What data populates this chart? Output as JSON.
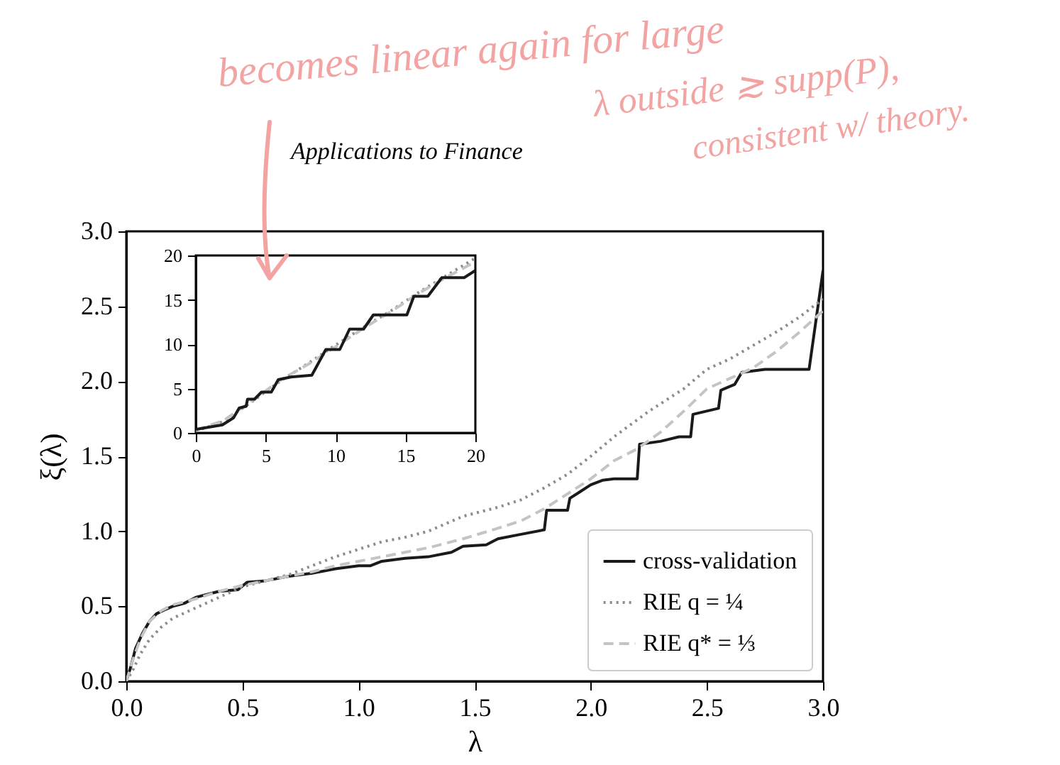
{
  "chart_data": [
    {
      "type": "line",
      "title": "Applications to Finance",
      "xlabel": "λ",
      "ylabel": "ξ(λ)",
      "annotations": [
        "becomes linear again for large",
        "λ outside ≳ supp(P),",
        "consistent w/ theory."
      ],
      "xlim": [
        0,
        3
      ],
      "ylim": [
        0,
        3
      ],
      "xticks": [
        {
          "value": 0,
          "label": "0.0"
        },
        {
          "value": 0.5,
          "label": "0.5"
        },
        {
          "value": 1,
          "label": "1.0"
        },
        {
          "value": 1.5,
          "label": "1.5"
        },
        {
          "value": 2,
          "label": "2.0"
        },
        {
          "value": 2.5,
          "label": "2.5"
        },
        {
          "value": 3,
          "label": "3.0"
        }
      ],
      "yticks": [
        {
          "value": 0,
          "label": "0.0"
        },
        {
          "value": 0.5,
          "label": "0.5"
        },
        {
          "value": 1,
          "label": "1.0"
        },
        {
          "value": 1.5,
          "label": "1.5"
        },
        {
          "value": 2,
          "label": "2.0"
        },
        {
          "value": 2.5,
          "label": "2.5"
        },
        {
          "value": 3,
          "label": "3.0"
        }
      ],
      "legend": "bottom right",
      "series": [
        {
          "name": "cross-validation",
          "color": "#1a1a1a",
          "line_style": "solid",
          "x": [
            0,
            0.02,
            0.04,
            0.07,
            0.1,
            0.13,
            0.17,
            0.2,
            0.25,
            0.3,
            0.4,
            0.48,
            0.52,
            0.6,
            0.7,
            0.8,
            0.9,
            1.0,
            1.05,
            1.1,
            1.2,
            1.3,
            1.4,
            1.45,
            1.55,
            1.6,
            1.7,
            1.8,
            1.81,
            1.9,
            1.91,
            1.95,
            2.0,
            2.05,
            2.1,
            2.2,
            2.21,
            2.3,
            2.38,
            2.43,
            2.44,
            2.55,
            2.56,
            2.62,
            2.65,
            2.75,
            2.94,
            3.0
          ],
          "values": [
            0,
            0.1,
            0.22,
            0.32,
            0.4,
            0.45,
            0.48,
            0.5,
            0.52,
            0.56,
            0.6,
            0.61,
            0.66,
            0.67,
            0.7,
            0.72,
            0.75,
            0.77,
            0.77,
            0.8,
            0.82,
            0.83,
            0.86,
            0.9,
            0.91,
            0.95,
            0.98,
            1.01,
            1.14,
            1.14,
            1.22,
            1.26,
            1.31,
            1.34,
            1.35,
            1.35,
            1.58,
            1.6,
            1.63,
            1.63,
            1.78,
            1.82,
            1.94,
            1.98,
            2.06,
            2.08,
            2.08,
            2.74
          ]
        },
        {
          "name": "RIE q = ¼",
          "color": "#8c8c8c",
          "line_style": "dotted",
          "x": [
            0,
            0.03,
            0.06,
            0.1,
            0.15,
            0.2,
            0.3,
            0.4,
            0.5,
            0.6,
            0.7,
            0.8,
            0.9,
            1.0,
            1.1,
            1.2,
            1.3,
            1.45,
            1.6,
            1.7,
            1.8,
            1.9,
            2.0,
            2.1,
            2.25,
            2.4,
            2.5,
            2.6,
            2.7,
            2.8,
            2.9,
            3.0
          ],
          "values": [
            0,
            0.08,
            0.18,
            0.28,
            0.36,
            0.42,
            0.49,
            0.56,
            0.63,
            0.67,
            0.71,
            0.77,
            0.83,
            0.88,
            0.93,
            0.96,
            1.0,
            1.1,
            1.16,
            1.21,
            1.29,
            1.38,
            1.5,
            1.63,
            1.8,
            1.95,
            2.08,
            2.15,
            2.24,
            2.33,
            2.43,
            2.55
          ]
        },
        {
          "name": "RIE q* = ⅓",
          "color": "#c4c4c4",
          "line_style": "dashed",
          "x": [
            0,
            0.03,
            0.06,
            0.1,
            0.15,
            0.2,
            0.3,
            0.4,
            0.5,
            0.6,
            0.7,
            0.8,
            0.9,
            1.0,
            1.1,
            1.2,
            1.3,
            1.45,
            1.6,
            1.7,
            1.8,
            1.9,
            2.0,
            2.1,
            2.2,
            2.3,
            2.4,
            2.5,
            2.6,
            2.7,
            2.8,
            2.9,
            3.0
          ],
          "values": [
            0,
            0.15,
            0.28,
            0.4,
            0.47,
            0.51,
            0.55,
            0.6,
            0.64,
            0.67,
            0.7,
            0.73,
            0.77,
            0.8,
            0.83,
            0.86,
            0.89,
            0.95,
            1.02,
            1.07,
            1.15,
            1.25,
            1.35,
            1.47,
            1.55,
            1.66,
            1.8,
            1.95,
            2.02,
            2.09,
            2.2,
            2.33,
            2.47
          ]
        }
      ]
    },
    {
      "type": "line",
      "xlim": [
        0,
        20
      ],
      "ylim": [
        0,
        20
      ],
      "xticks": [
        0,
        5,
        10,
        15,
        20
      ],
      "yticks": [
        0,
        5,
        10,
        15,
        20
      ],
      "series": [
        {
          "color": "#8c8c8c",
          "line_style": "dotted",
          "x": [
            0,
            2,
            4,
            6,
            8,
            10,
            12,
            14,
            16,
            18,
            20
          ],
          "values": [
            0.2,
            1.3,
            3.5,
            5.8,
            7.8,
            9.9,
            11.9,
            13.8,
            15.9,
            17.8,
            19.7
          ]
        },
        {
          "color": "#c4c4c4",
          "line_style": "dashed",
          "x": [
            0,
            2,
            4,
            6,
            8,
            10,
            12,
            14,
            16,
            18,
            20
          ],
          "values": [
            0.3,
            1.4,
            3.6,
            5.9,
            7.7,
            9.7,
            11.8,
            13.7,
            15.8,
            17.6,
            19.3
          ]
        },
        {
          "color": "#1a1a1a",
          "line_style": "solid",
          "x": [
            0,
            1.9,
            2.7,
            3.1,
            3.6,
            3.7,
            4.2,
            4.7,
            5.4,
            5.9,
            6.8,
            8.3,
            9.3,
            10.3,
            11.0,
            12.0,
            12.7,
            15.1,
            15.6,
            16.6,
            17.6,
            19.2,
            20
          ],
          "values": [
            0.4,
            0.9,
            1.7,
            2.8,
            3.0,
            3.8,
            3.8,
            4.6,
            4.6,
            6.0,
            6.3,
            6.5,
            9.4,
            9.4,
            11.7,
            11.7,
            13.3,
            13.3,
            15.4,
            15.4,
            17.5,
            17.5,
            18.3
          ]
        }
      ]
    }
  ]
}
